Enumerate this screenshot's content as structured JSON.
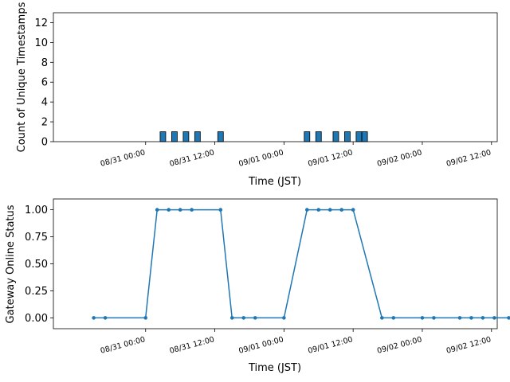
{
  "chart_data": [
    {
      "type": "bar",
      "title": "",
      "xlabel": "Time (JST)",
      "ylabel": "Count of Unique Timestamps",
      "ylim": [
        0,
        13
      ],
      "yticks": [
        0,
        2,
        4,
        6,
        8,
        10,
        12
      ],
      "xlim": [
        "2024-08-30 08:00",
        "2024-09-02 13:00"
      ],
      "xticks": [
        {
          "t": "2024-08-31 00:00",
          "label": "08/31 00:00"
        },
        {
          "t": "2024-08-31 12:00",
          "label": "08/31 12:00"
        },
        {
          "t": "2024-09-01 00:00",
          "label": "09/01 00:00"
        },
        {
          "t": "2024-09-01 12:00",
          "label": "09/01 12:00"
        },
        {
          "t": "2024-09-02 00:00",
          "label": "09/02 00:00"
        },
        {
          "t": "2024-09-02 12:00",
          "label": "09/02 12:00"
        }
      ],
      "bar_color": "#1f77b4",
      "bars": [
        {
          "t": "2024-08-31 03:00",
          "value": 1
        },
        {
          "t": "2024-08-31 05:00",
          "value": 1
        },
        {
          "t": "2024-08-31 07:00",
          "value": 1
        },
        {
          "t": "2024-08-31 09:00",
          "value": 1
        },
        {
          "t": "2024-08-31 13:00",
          "value": 1
        },
        {
          "t": "2024-09-01 04:00",
          "value": 1
        },
        {
          "t": "2024-09-01 06:00",
          "value": 1
        },
        {
          "t": "2024-09-01 09:00",
          "value": 1
        },
        {
          "t": "2024-09-01 11:00",
          "value": 1
        },
        {
          "t": "2024-09-01 13:00",
          "value": 1
        },
        {
          "t": "2024-09-01 14:00",
          "value": 1
        }
      ]
    },
    {
      "type": "line",
      "title": "",
      "xlabel": "Time (JST)",
      "ylabel": "Gateway Online Status",
      "ylim": [
        -0.1,
        1.1
      ],
      "yticks": [
        0.0,
        0.25,
        0.5,
        0.75,
        1.0
      ],
      "ytick_labels": [
        "0.00",
        "0.25",
        "0.50",
        "0.75",
        "1.00"
      ],
      "xlim": [
        "2024-08-30 08:00",
        "2024-09-02 13:00"
      ],
      "xticks": [
        {
          "t": "2024-08-31 00:00",
          "label": "08/31 00:00"
        },
        {
          "t": "2024-08-31 12:00",
          "label": "08/31 12:00"
        },
        {
          "t": "2024-09-01 00:00",
          "label": "09/01 00:00"
        },
        {
          "t": "2024-09-01 12:00",
          "label": "09/01 12:00"
        },
        {
          "t": "2024-09-02 00:00",
          "label": "09/02 00:00"
        },
        {
          "t": "2024-09-02 12:00",
          "label": "09/02 12:00"
        }
      ],
      "line_color": "#1f77b4",
      "points": [
        {
          "t": "2024-08-30 15:00",
          "y": 0
        },
        {
          "t": "2024-08-30 17:00",
          "y": 0
        },
        {
          "t": "2024-08-31 00:00",
          "y": 0
        },
        {
          "t": "2024-08-31 02:00",
          "y": 1
        },
        {
          "t": "2024-08-31 04:00",
          "y": 1
        },
        {
          "t": "2024-08-31 06:00",
          "y": 1
        },
        {
          "t": "2024-08-31 08:00",
          "y": 1
        },
        {
          "t": "2024-08-31 13:00",
          "y": 1
        },
        {
          "t": "2024-08-31 15:00",
          "y": 0
        },
        {
          "t": "2024-08-31 17:00",
          "y": 0
        },
        {
          "t": "2024-08-31 19:00",
          "y": 0
        },
        {
          "t": "2024-09-01 00:00",
          "y": 0
        },
        {
          "t": "2024-09-01 04:00",
          "y": 1
        },
        {
          "t": "2024-09-01 06:00",
          "y": 1
        },
        {
          "t": "2024-09-01 08:00",
          "y": 1
        },
        {
          "t": "2024-09-01 10:00",
          "y": 1
        },
        {
          "t": "2024-09-01 12:00",
          "y": 1
        },
        {
          "t": "2024-09-01 17:00",
          "y": 0
        },
        {
          "t": "2024-09-01 19:00",
          "y": 0
        },
        {
          "t": "2024-09-02 00:00",
          "y": 0
        },
        {
          "t": "2024-09-02 02:00",
          "y": 0
        },
        {
          "t": "2024-09-02 06:30",
          "y": 0
        },
        {
          "t": "2024-09-02 08:30",
          "y": 0
        },
        {
          "t": "2024-09-02 10:30",
          "y": 0
        },
        {
          "t": "2024-09-02 12:30",
          "y": 0
        },
        {
          "t": "2024-09-02 15:00",
          "y": 0
        }
      ]
    }
  ]
}
